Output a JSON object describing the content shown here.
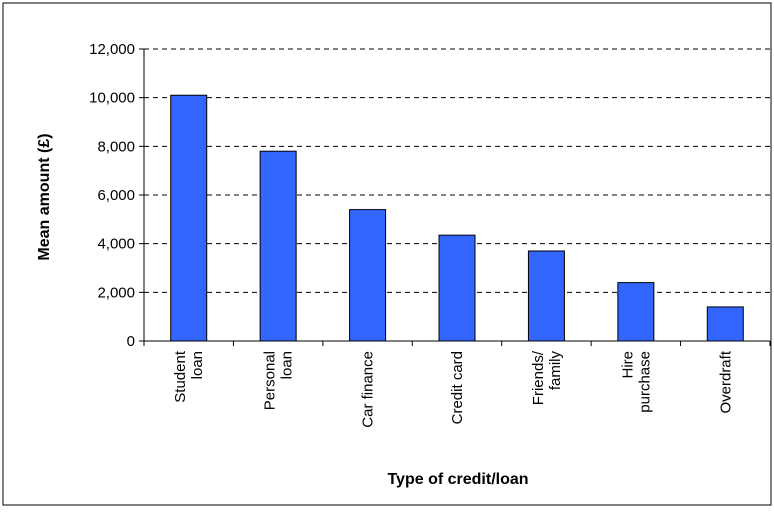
{
  "chart_data": {
    "type": "bar",
    "title": "",
    "xlabel": "Type of credit/loan",
    "ylabel": "Mean amount (£)",
    "categories": [
      [
        "Student",
        "loan"
      ],
      [
        "Personal",
        "loan"
      ],
      [
        "Car finance"
      ],
      [
        "Credit card"
      ],
      [
        "Friends/",
        "family"
      ],
      [
        "Hire",
        "purchase"
      ],
      [
        "Overdraft"
      ]
    ],
    "values": [
      10100,
      7800,
      5400,
      4350,
      3700,
      2400,
      1400
    ],
    "ylim": [
      0,
      12000
    ],
    "yticks": [
      0,
      2000,
      4000,
      6000,
      8000,
      10000,
      12000
    ],
    "ytick_labels": [
      "0",
      "2,000",
      "4,000",
      "6,000",
      "8,000",
      "10,000",
      "12,000"
    ],
    "grid": "horizontal dashed",
    "legend": "none",
    "colors": {
      "bar": "#3366FF",
      "bar_border": "#000000",
      "grid": "#000000"
    }
  }
}
